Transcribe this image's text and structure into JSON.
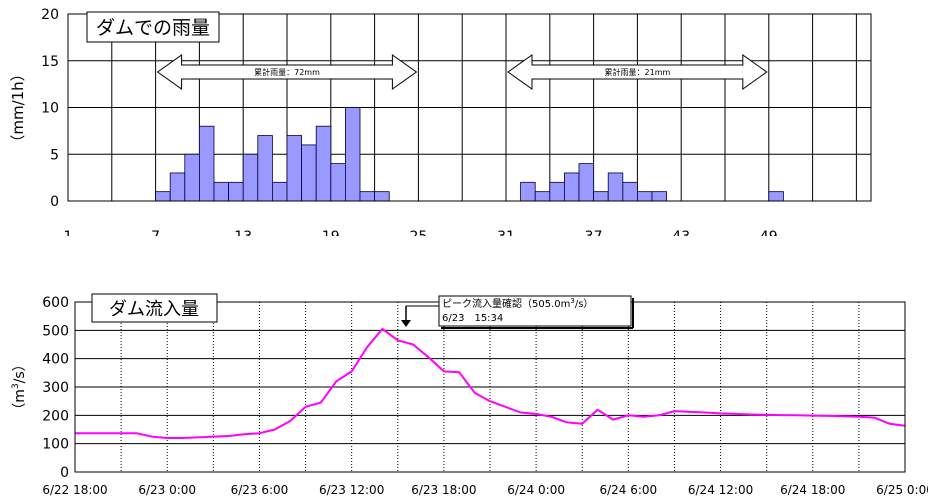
{
  "chart_data": [
    {
      "type": "bar",
      "title": "ダムでの雨量",
      "ylabel": "（mm/1h）",
      "ylim": [
        0,
        20
      ],
      "yticks": [
        0,
        5,
        10,
        15,
        20
      ],
      "xticks": [
        "1",
        "7",
        "13",
        "19",
        "25",
        "31",
        "37",
        "43",
        "49"
      ],
      "grid": true,
      "color": "#9999ff",
      "series": [
        {
          "values": [
            0,
            0,
            0,
            0,
            0,
            0,
            1,
            3,
            5,
            8,
            2,
            2,
            5,
            7,
            2,
            7,
            6,
            8,
            4,
            10,
            1,
            1,
            0,
            0,
            0,
            0,
            0,
            0,
            0,
            0,
            0,
            2,
            1,
            2,
            3,
            4,
            1,
            3,
            2,
            1,
            1,
            0,
            0,
            0,
            0,
            0,
            0,
            0,
            1,
            0,
            0,
            0,
            0,
            0,
            0
          ]
        }
      ],
      "annotations": [
        {
          "text": "累計雨量：72mm",
          "from_bar": 7,
          "to_bar": 24
        },
        {
          "text": "累計雨量：21mm",
          "from_bar": 31,
          "to_bar": 48
        }
      ]
    },
    {
      "type": "line",
      "title": "ダム流入量",
      "ylabel_main": "（m",
      "ylabel_sup": "3",
      "ylabel_tail": "/s）",
      "ylim": [
        0,
        600
      ],
      "yticks": [
        0,
        100,
        200,
        300,
        400,
        500,
        600
      ],
      "xticks": [
        "6/22 18:00",
        "6/23 0:00",
        "6/23 6:00",
        "6/23 12:00",
        "6/23 18:00",
        "6/24 0:00",
        "6/24 6:00",
        "6/24 12:00",
        "6/24 18:00",
        "6/25 0:00"
      ],
      "x_unit": "hours since 6/22 18:00",
      "grid": true,
      "color": "#ff00ff",
      "series": [
        {
          "x": [
            0,
            3,
            4,
            5,
            6,
            7,
            8,
            9,
            10,
            11,
            12,
            13,
            14,
            15,
            16,
            17,
            18,
            19,
            20,
            21,
            22,
            23,
            24,
            25,
            26,
            27,
            28,
            29,
            30,
            31,
            32,
            33,
            34,
            35,
            36,
            37,
            38,
            39,
            40,
            41,
            42,
            43,
            44,
            45,
            46,
            47,
            48,
            49,
            50,
            51,
            52,
            53,
            54
          ],
          "y": [
            137,
            137,
            137,
            125,
            120,
            120,
            122,
            125,
            127,
            133,
            137,
            150,
            180,
            230,
            245,
            320,
            355,
            440,
            505,
            465,
            450,
            405,
            355,
            352,
            280,
            250,
            230,
            210,
            205,
            195,
            175,
            170,
            220,
            185,
            200,
            195,
            200,
            215,
            212,
            210,
            207,
            205,
            203,
            202,
            201,
            200,
            199,
            198,
            197,
            195,
            192,
            170,
            163
          ]
        }
      ],
      "callout": {
        "line1": "ピーク流入量確認（505.0m",
        "sup": "3",
        "line1_tail": "/s）",
        "line2": "6/23　15:34"
      }
    }
  ]
}
